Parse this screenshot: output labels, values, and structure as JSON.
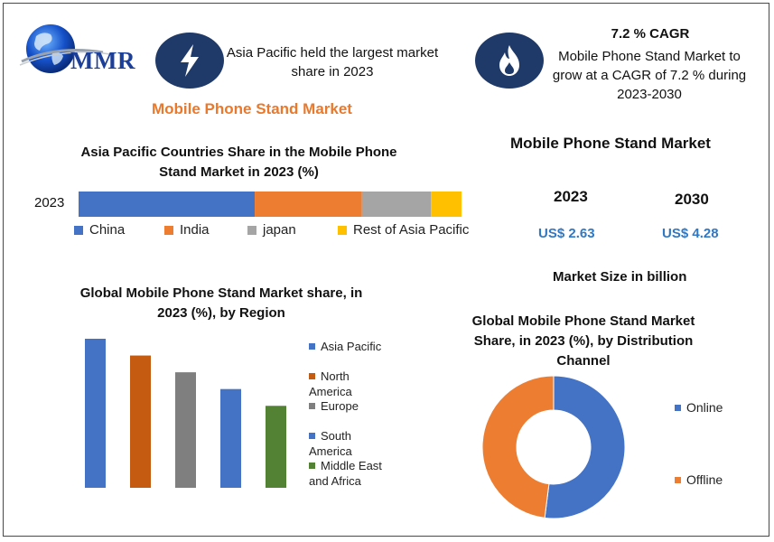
{
  "logo": {
    "text": "MMR"
  },
  "header": {
    "highlight1": "Asia Pacific held the largest market share in 2023",
    "cagr_title": "7.2 % CAGR",
    "cagr_text": "Mobile Phone Stand Market to grow at a CAGR of 7.2 % during 2023-2030",
    "market_title": "Mobile Phone Stand Market",
    "icons": [
      "lightning-icon",
      "flame-icon"
    ]
  },
  "market_size": {
    "title": "Mobile Phone Stand Market",
    "year1": "2023",
    "year2": "2030",
    "value1": "US$ 2.63",
    "value2": "US$ 4.28",
    "caption": "Market Size in billion"
  },
  "colors": {
    "china": "#4472c4",
    "india": "#ed7d31",
    "japan": "#a5a5a5",
    "rest": "#ffc000",
    "asia_pacific": "#4472c4",
    "north_america": "#c55a11",
    "europe": "#7f7f7f",
    "south_america": "#4472c4",
    "mea": "#548235",
    "online": "#4472c4",
    "offline": "#ed7d31",
    "icon_bg": "#1f3a68"
  },
  "chart_data": [
    {
      "type": "bar",
      "orientation": "horizontal-stacked",
      "title": "Asia Pacific Countries Share in the  Mobile Phone Stand Market in 2023 (%)",
      "categories": [
        "2023"
      ],
      "series": [
        {
          "name": "China",
          "values": [
            46
          ]
        },
        {
          "name": "India",
          "values": [
            28
          ]
        },
        {
          "name": "japan",
          "values": [
            18
          ]
        },
        {
          "name": "Rest of Asia Pacific",
          "values": [
            8
          ]
        }
      ],
      "legend": "bottom"
    },
    {
      "type": "bar",
      "title": "Global Mobile Phone Stand Market share, in 2023 (%), by Region",
      "series": [
        {
          "name": "Asia Pacific",
          "values": [
            40
          ]
        },
        {
          "name": "North America",
          "values": [
            35.5
          ]
        },
        {
          "name": "Europe",
          "values": [
            31
          ]
        },
        {
          "name": "South America",
          "values": [
            26.5
          ]
        },
        {
          "name": "Middle East and Africa",
          "values": [
            22
          ]
        }
      ],
      "ylim": [
        0,
        40
      ],
      "legend": "right",
      "grid": false
    },
    {
      "type": "pie",
      "style": "donut",
      "title": "Global Mobile Phone Stand Market Share, in 2023 (%), by Distribution Channel",
      "categories": [
        "Online",
        "Offline"
      ],
      "values": [
        52,
        48
      ],
      "legend": "right"
    }
  ]
}
